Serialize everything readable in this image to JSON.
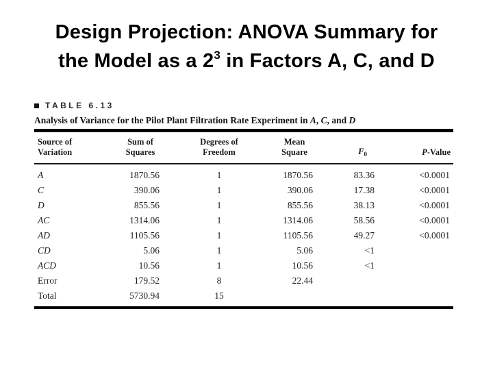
{
  "slide": {
    "title_line1": "Design Projection: ANOVA Summary for",
    "title_line2_pre": "the Model as a 2",
    "title_sup": "3",
    "title_line2_post": " in Factors A, C, and D"
  },
  "figure": {
    "label": "TABLE 6.13",
    "caption": {
      "prefix": "Analysis of Variance for the Pilot Plant Filtration Rate Experiment in ",
      "factor1": "A",
      "sep1": ", ",
      "factor2": "C",
      "sep2": ", and ",
      "factor3": "D"
    },
    "headers": {
      "source": {
        "line1": "Source of",
        "line2": "Variation"
      },
      "ss": {
        "line1": "Sum of",
        "line2": "Squares"
      },
      "df": {
        "line1": "Degrees of",
        "line2": "Freedom"
      },
      "ms": {
        "line1": "Mean",
        "line2": "Square"
      },
      "f": {
        "letter": "F",
        "sub": "0"
      },
      "p": {
        "letter": "P",
        "rest": "-Value"
      }
    },
    "rows": [
      {
        "source": "A",
        "ss": "1870.56",
        "df": "1",
        "ms": "1870.56",
        "f0": "83.36",
        "p": "<0.0001"
      },
      {
        "source": "C",
        "ss": "390.06",
        "df": "1",
        "ms": "390.06",
        "f0": "17.38",
        "p": "<0.0001"
      },
      {
        "source": "D",
        "ss": "855.56",
        "df": "1",
        "ms": "855.56",
        "f0": "38.13",
        "p": "<0.0001"
      },
      {
        "source": "AC",
        "ss": "1314.06",
        "df": "1",
        "ms": "1314.06",
        "f0": "58.56",
        "p": "<0.0001"
      },
      {
        "source": "AD",
        "ss": "1105.56",
        "df": "1",
        "ms": "1105.56",
        "f0": "49.27",
        "p": "<0.0001"
      },
      {
        "source": "CD",
        "ss": "5.06",
        "df": "1",
        "ms": "5.06",
        "f0": "<1",
        "p": ""
      },
      {
        "source": "ACD",
        "ss": "10.56",
        "df": "1",
        "ms": "10.56",
        "f0": "<1",
        "p": ""
      },
      {
        "source": "Error",
        "ss": "179.52",
        "df": "8",
        "ms": "22.44",
        "f0": "",
        "p": ""
      },
      {
        "source": "Total",
        "ss": "5730.94",
        "df": "15",
        "ms": "",
        "f0": "",
        "p": ""
      }
    ]
  }
}
